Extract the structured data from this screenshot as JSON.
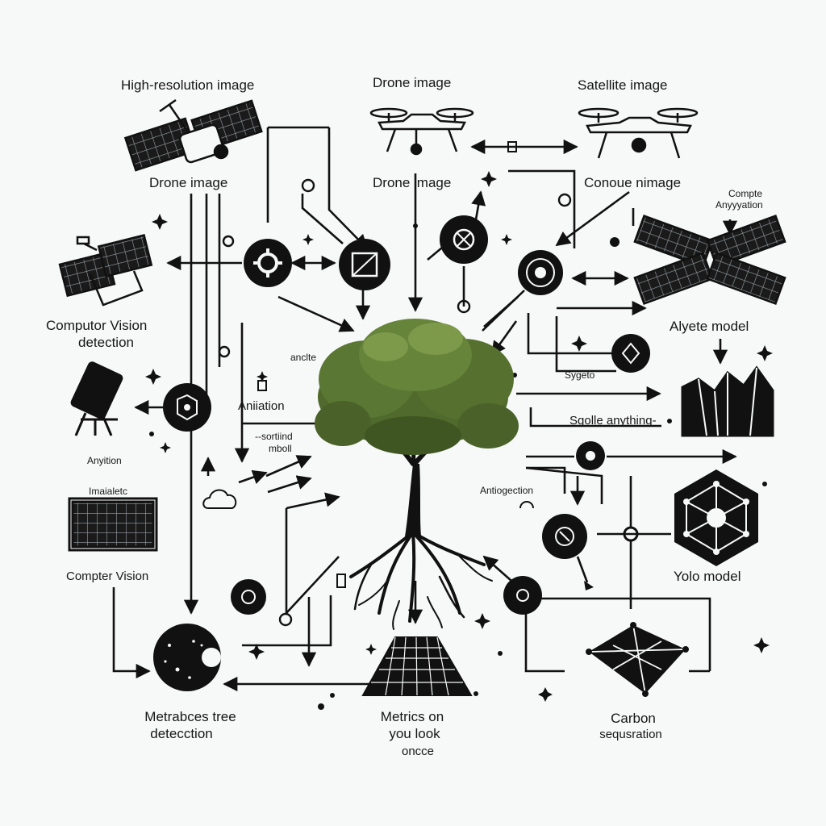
{
  "labels": {
    "high_res": "High-resolution image",
    "drone_top": "Drone image",
    "satellite_top": "Satellite image",
    "drone_left": "Drone image",
    "drone_center": "Drone image",
    "conoue": "Conoue nimage",
    "compte_line1": "Compte",
    "compte_line2": "Anyyyation",
    "cv_detection_line1": "Computor Vision",
    "cv_detection_line2": "detection",
    "alyete_model": "Alyete model",
    "anclte": "anclte",
    "aniation": "Aniiation",
    "sygeto": "Sygeto",
    "sgolle": "Sgolle anything-",
    "sortiind_line1": "--sortiind",
    "sortiind_line2": "mboll",
    "anyition": "Anyition",
    "imaialetc": "Imaialetc",
    "antiogection": "Antiogection",
    "compter_vision": "Compter Vision",
    "yolo_model": "Yolo model",
    "metrabces_line1": "Metrabces tree",
    "metrabces_line2": "detecction",
    "metrics_line1": "Metrics on",
    "metrics_line2": "you look",
    "metrics_line3": "oncce",
    "carbon_line1": "Carbon",
    "carbon_line2": "sequsration"
  },
  "icons": [
    "satellite-icon",
    "drone-icon",
    "solar-panel-icon",
    "tree-icon",
    "gear-icon",
    "camera-icon",
    "mountain-icon",
    "network-icon",
    "cloud-icon",
    "target-icon"
  ],
  "colors": {
    "background": "#f7f8f8",
    "ink": "#111111",
    "tree_foliage": "#4f6a2c",
    "tree_foliage_light": "#7d9a4b"
  }
}
